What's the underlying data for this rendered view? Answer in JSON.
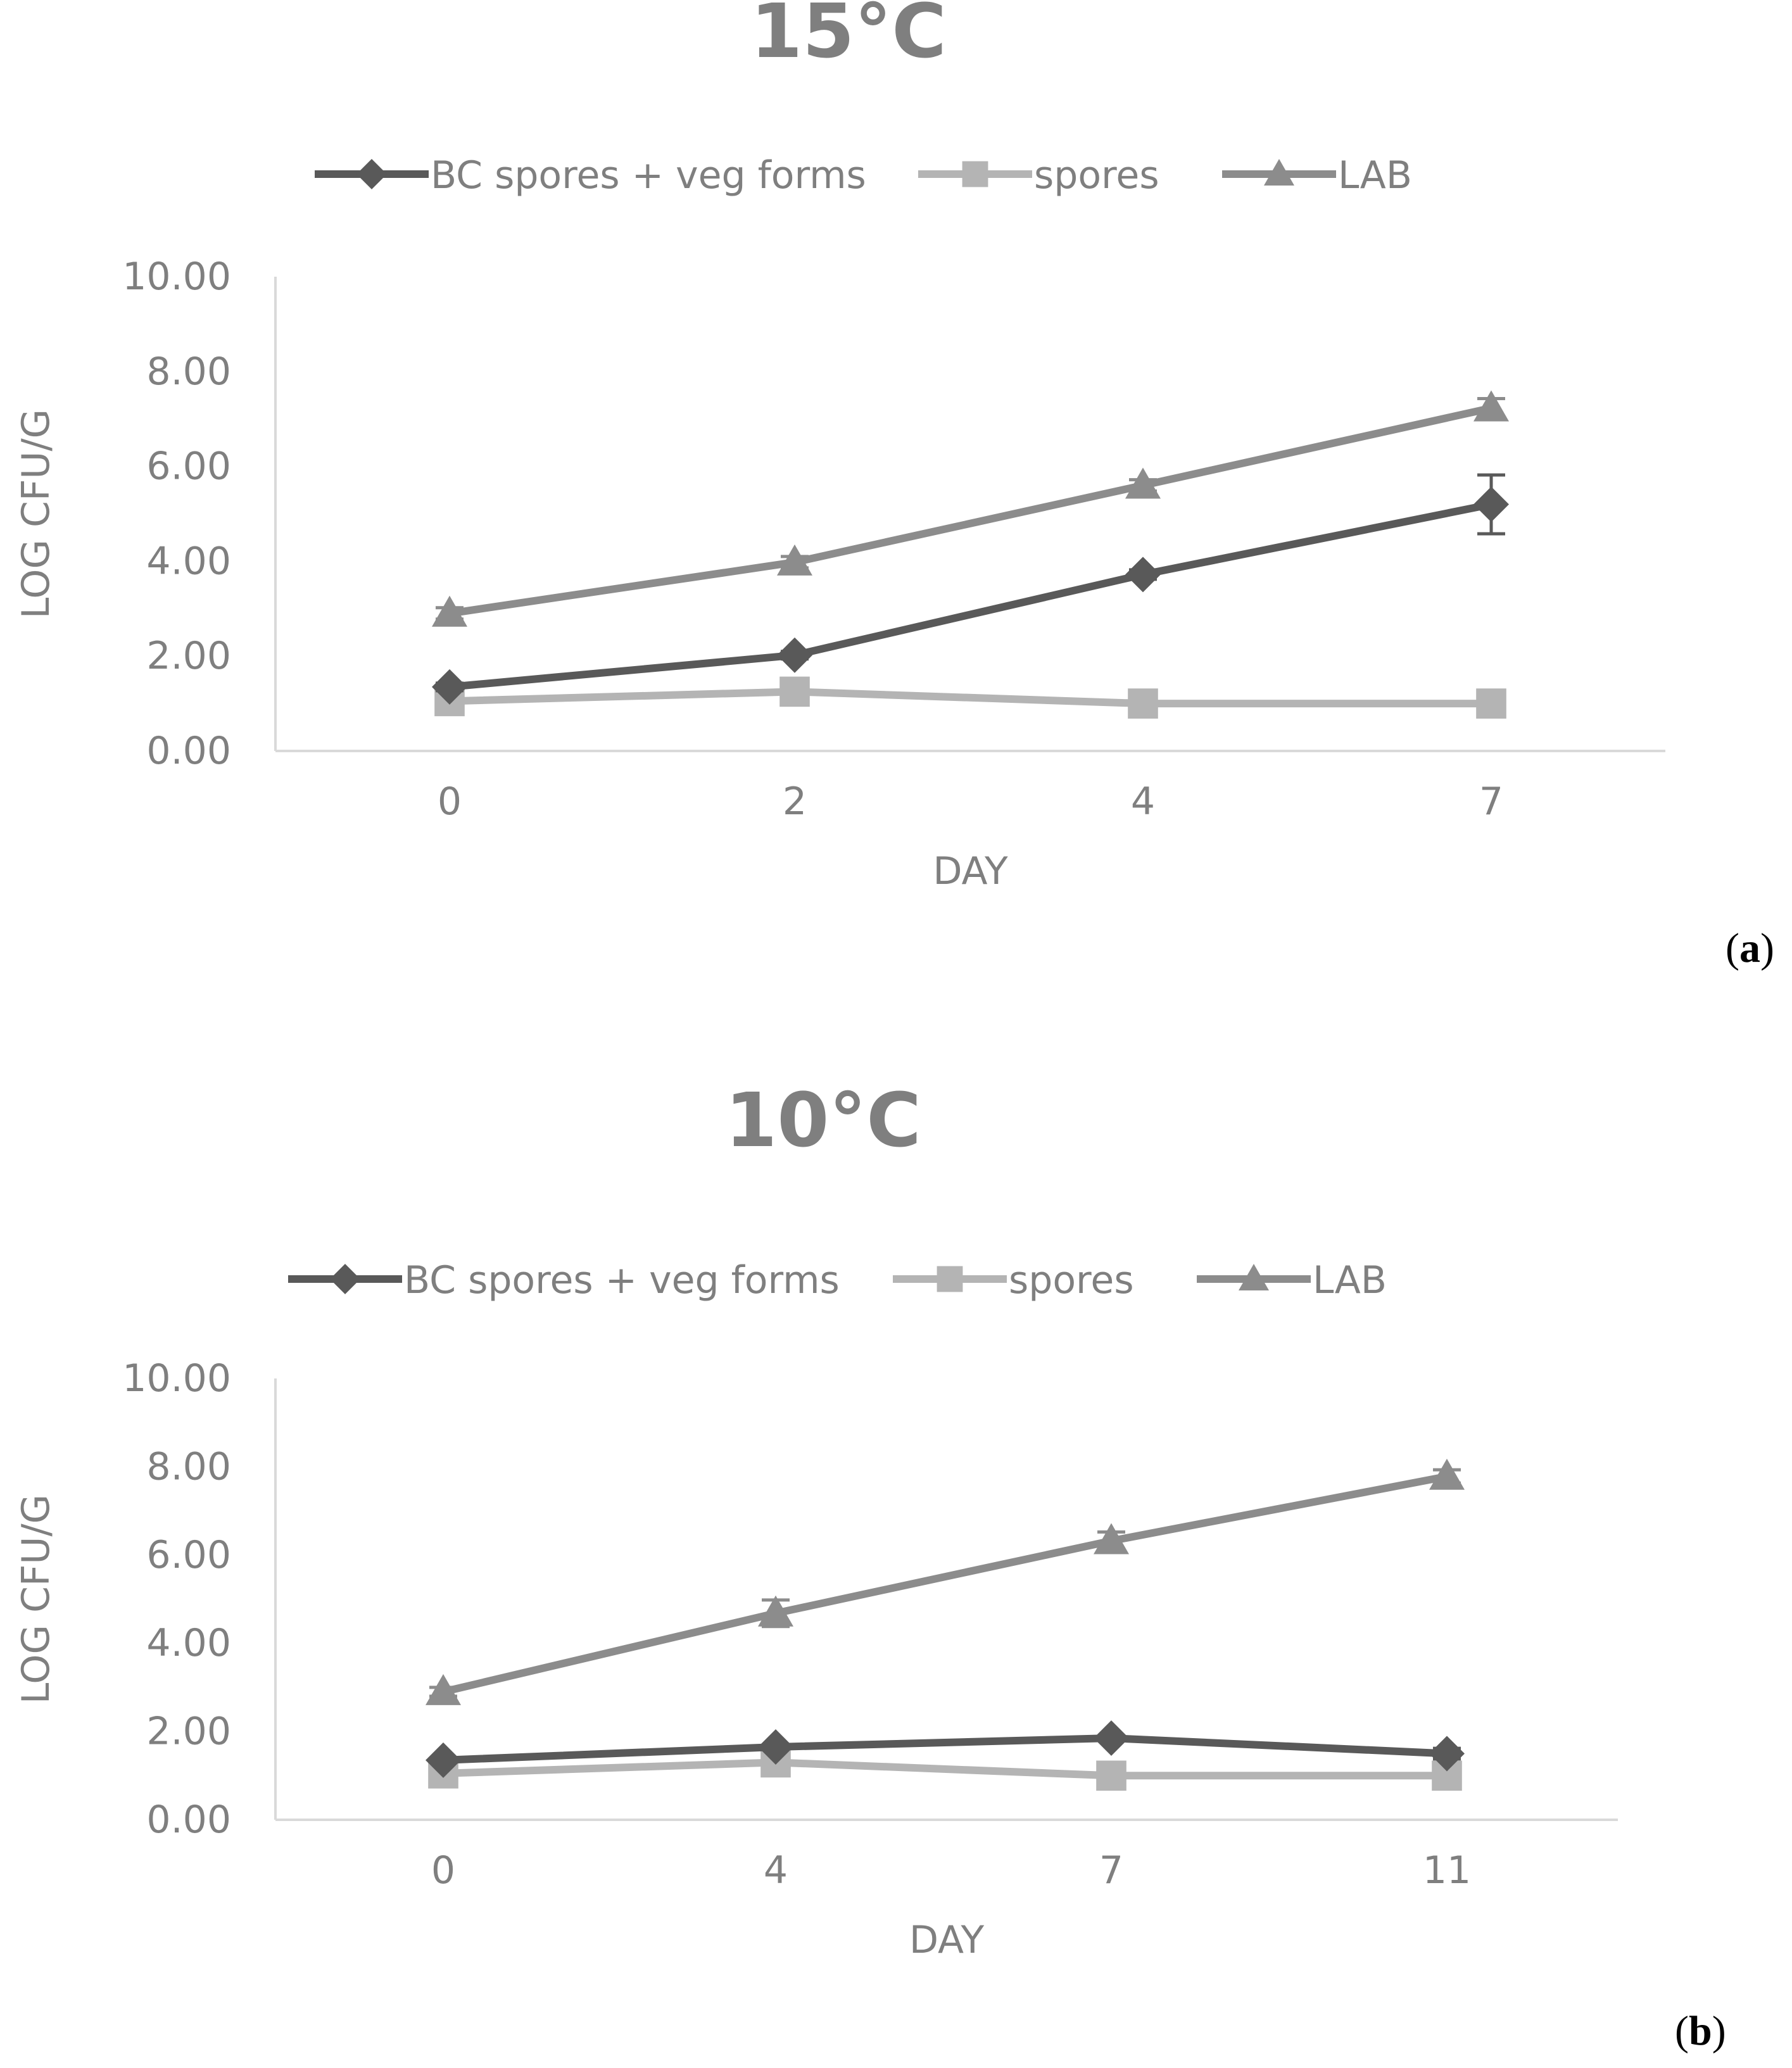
{
  "chart_data": [
    {
      "type": "line",
      "title": "15°C",
      "xlabel": "DAY",
      "ylabel": "LOG CFU/G",
      "categories": [
        "0",
        "2",
        "4",
        "7"
      ],
      "ylim": [
        0,
        10
      ],
      "yticks": [
        "0.00",
        "2.00",
        "4.00",
        "6.00",
        "8.00",
        "10.00"
      ],
      "legend_position": "top",
      "panel_label": "a",
      "series": [
        {
          "name": "BC spores + veg forms",
          "marker": "diamond",
          "color": "#595959",
          "values": [
            1.35,
            2.02,
            3.72,
            5.2
          ],
          "errors": [
            0.08,
            0.08,
            0.1,
            0.62
          ]
        },
        {
          "name": "spores",
          "marker": "square",
          "color": "#b4b4b4",
          "values": [
            1.05,
            1.25,
            1.0,
            1.0
          ],
          "errors": [
            0,
            0,
            0,
            0
          ]
        },
        {
          "name": "LAB",
          "marker": "triangle",
          "color": "#8c8c8c",
          "values": [
            2.9,
            3.98,
            5.6,
            7.23
          ],
          "errors": [
            0.12,
            0.12,
            0.12,
            0.2
          ]
        }
      ]
    },
    {
      "type": "line",
      "title": "10°C",
      "xlabel": "DAY",
      "ylabel": "LOG CFU/G",
      "categories": [
        "0",
        "4",
        "7",
        "11"
      ],
      "ylim": [
        0,
        10
      ],
      "yticks": [
        "0.00",
        "2.00",
        "4.00",
        "6.00",
        "8.00",
        "10.00"
      ],
      "legend_position": "top",
      "panel_label": "b",
      "series": [
        {
          "name": "BC spores + veg forms",
          "marker": "diamond",
          "color": "#595959",
          "values": [
            1.35,
            1.65,
            1.85,
            1.5
          ],
          "errors": [
            0.05,
            0.05,
            0.05,
            0.12
          ]
        },
        {
          "name": "spores",
          "marker": "square",
          "color": "#b4b4b4",
          "values": [
            1.05,
            1.3,
            1.0,
            1.0
          ],
          "errors": [
            0,
            0,
            0,
            0
          ]
        },
        {
          "name": "LAB",
          "marker": "triangle",
          "color": "#8c8c8c",
          "values": [
            2.9,
            4.68,
            6.32,
            7.78
          ],
          "errors": [
            0.1,
            0.3,
            0.2,
            0.15
          ]
        }
      ]
    }
  ]
}
